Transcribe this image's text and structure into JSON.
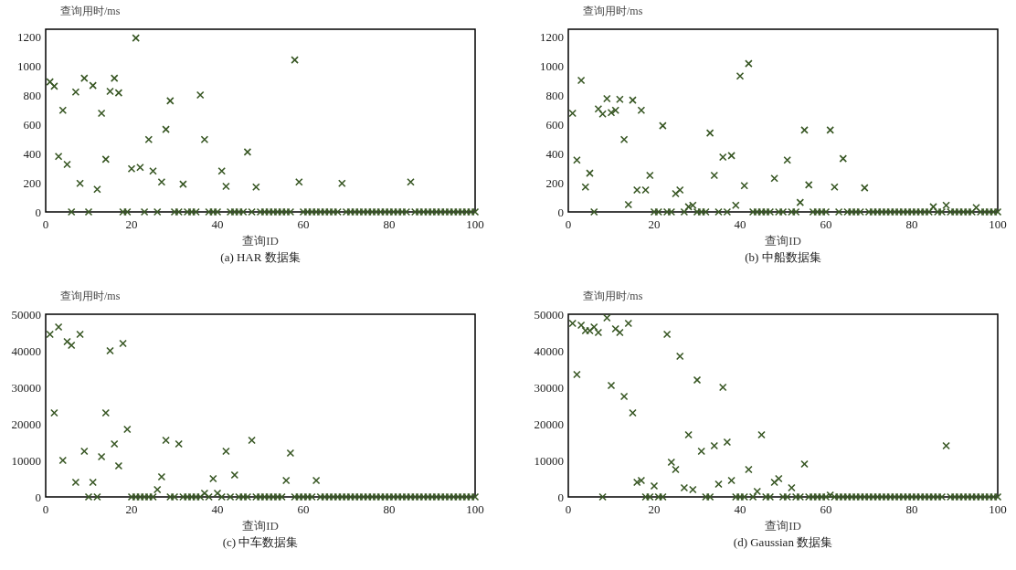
{
  "chart_data": [
    {
      "type": "scatter",
      "title": "(a) HAR 数据集",
      "xlabel": "查询ID",
      "ylabel": "查询用时/ms",
      "marker": "cross",
      "xlim": [
        0,
        100
      ],
      "xticks": [
        0,
        20,
        40,
        60,
        80,
        100
      ],
      "ylim": [
        0,
        1250
      ],
      "yticks": [
        0,
        200,
        400,
        600,
        800,
        1000,
        1200
      ],
      "x": [
        1,
        2,
        3,
        4,
        5,
        6,
        7,
        8,
        9,
        10,
        11,
        12,
        13,
        14,
        15,
        16,
        17,
        18,
        19,
        20,
        21,
        22,
        23,
        24,
        25,
        26,
        27,
        28,
        29,
        30,
        31,
        32,
        33,
        34,
        35,
        36,
        37,
        38,
        39,
        40,
        41,
        42,
        43,
        44,
        45,
        46,
        47,
        48,
        49,
        50,
        51,
        52,
        53,
        54,
        55,
        56,
        57,
        58,
        59,
        60,
        61,
        62,
        63,
        64,
        65,
        66,
        67,
        68,
        69,
        70,
        71,
        72,
        73,
        74,
        75,
        76,
        77,
        78,
        79,
        80,
        81,
        82,
        83,
        84,
        85,
        86,
        87,
        88,
        89,
        90,
        91,
        92,
        93,
        94,
        95,
        96,
        97,
        98,
        99,
        100
      ],
      "series": [
        {
          "color": "#375623",
          "values": [
            890,
            860,
            380,
            695,
            325,
            0,
            820,
            195,
            915,
            0,
            865,
            155,
            675,
            360,
            825,
            915,
            815,
            0,
            0,
            295,
            1190,
            305,
            0,
            495,
            280,
            0,
            205,
            565,
            760,
            0,
            0,
            190,
            0,
            0,
            0,
            800,
            495,
            0,
            0,
            0,
            280,
            175,
            0,
            0,
            0,
            0,
            410,
            0,
            170,
            0,
            0,
            0,
            0,
            0,
            0,
            0,
            0,
            1040,
            205,
            0,
            0,
            0,
            0,
            0,
            0,
            0,
            0,
            0,
            195,
            0,
            0,
            0,
            0,
            0,
            0,
            0,
            0,
            0,
            0,
            0,
            0,
            0,
            0,
            0,
            205,
            0,
            0,
            0,
            0,
            0,
            0,
            0,
            0,
            0,
            0,
            0,
            0,
            0,
            0,
            0
          ]
        }
      ]
    },
    {
      "type": "scatter",
      "title": "(b)  中船数据集",
      "xlabel": "查询ID",
      "ylabel": "查询用时/ms",
      "marker": "cross",
      "xlim": [
        0,
        100
      ],
      "xticks": [
        0,
        20,
        40,
        60,
        80,
        100
      ],
      "ylim": [
        0,
        1250
      ],
      "yticks": [
        0,
        200,
        400,
        600,
        800,
        1000,
        1200
      ],
      "x": [
        1,
        2,
        3,
        4,
        5,
        6,
        7,
        8,
        9,
        10,
        11,
        12,
        13,
        14,
        15,
        16,
        17,
        18,
        19,
        20,
        21,
        22,
        23,
        24,
        25,
        26,
        27,
        28,
        29,
        30,
        31,
        32,
        33,
        34,
        35,
        36,
        37,
        38,
        39,
        40,
        41,
        42,
        43,
        44,
        45,
        46,
        47,
        48,
        49,
        50,
        51,
        52,
        53,
        54,
        55,
        56,
        57,
        58,
        59,
        60,
        61,
        62,
        63,
        64,
        65,
        66,
        67,
        68,
        69,
        70,
        71,
        72,
        73,
        74,
        75,
        76,
        77,
        78,
        79,
        80,
        81,
        82,
        83,
        84,
        85,
        86,
        87,
        88,
        89,
        90,
        91,
        92,
        93,
        94,
        95,
        96,
        97,
        98,
        99,
        100
      ],
      "series": [
        {
          "color": "#375623",
          "values": [
            675,
            355,
            900,
            170,
            265,
            0,
            705,
            670,
            775,
            680,
            695,
            770,
            495,
            50,
            765,
            150,
            695,
            150,
            250,
            0,
            0,
            590,
            0,
            0,
            125,
            150,
            0,
            35,
            45,
            0,
            0,
            0,
            540,
            250,
            0,
            375,
            0,
            385,
            45,
            930,
            180,
            1015,
            0,
            0,
            0,
            0,
            0,
            230,
            0,
            0,
            355,
            0,
            0,
            65,
            560,
            185,
            0,
            0,
            0,
            0,
            560,
            170,
            0,
            365,
            0,
            0,
            0,
            0,
            165,
            0,
            0,
            0,
            0,
            0,
            0,
            0,
            0,
            0,
            0,
            0,
            0,
            0,
            0,
            0,
            35,
            0,
            0,
            45,
            0,
            0,
            0,
            0,
            0,
            0,
            30,
            0,
            0,
            0,
            0,
            0
          ]
        }
      ]
    },
    {
      "type": "scatter",
      "title": "(c)  中车数据集",
      "xlabel": "查询ID",
      "ylabel": "查询用时/ms",
      "marker": "cross",
      "xlim": [
        0,
        100
      ],
      "xticks": [
        0,
        20,
        40,
        60,
        80,
        100
      ],
      "ylim": [
        0,
        50000
      ],
      "yticks": [
        0,
        10000,
        20000,
        30000,
        40000,
        50000
      ],
      "x": [
        1,
        2,
        3,
        4,
        5,
        6,
        7,
        8,
        9,
        10,
        11,
        12,
        13,
        14,
        15,
        16,
        17,
        18,
        19,
        20,
        21,
        22,
        23,
        24,
        25,
        26,
        27,
        28,
        29,
        30,
        31,
        32,
        33,
        34,
        35,
        36,
        37,
        38,
        39,
        40,
        41,
        42,
        43,
        44,
        45,
        46,
        47,
        48,
        49,
        50,
        51,
        52,
        53,
        54,
        55,
        56,
        57,
        58,
        59,
        60,
        61,
        62,
        63,
        64,
        65,
        66,
        67,
        68,
        69,
        70,
        71,
        72,
        73,
        74,
        75,
        76,
        77,
        78,
        79,
        80,
        81,
        82,
        83,
        84,
        85,
        86,
        87,
        88,
        89,
        90,
        91,
        92,
        93,
        94,
        95,
        96,
        97,
        98,
        99,
        100
      ],
      "series": [
        {
          "color": "#375623",
          "values": [
            44500,
            23000,
            46500,
            10000,
            42500,
            41500,
            4000,
            44500,
            12500,
            0,
            4000,
            0,
            11000,
            23000,
            40000,
            14500,
            8500,
            42000,
            18500,
            0,
            0,
            0,
            0,
            0,
            0,
            2000,
            5500,
            15500,
            0,
            0,
            14500,
            0,
            0,
            0,
            0,
            0,
            1000,
            0,
            5000,
            1000,
            0,
            12500,
            0,
            6000,
            0,
            0,
            0,
            15500,
            0,
            0,
            0,
            0,
            0,
            0,
            0,
            4500,
            12000,
            0,
            0,
            0,
            0,
            0,
            4500,
            0,
            0,
            0,
            0,
            0,
            0,
            0,
            0,
            0,
            0,
            0,
            0,
            0,
            0,
            0,
            0,
            0,
            0,
            0,
            0,
            0,
            0,
            0,
            0,
            0,
            0,
            0,
            0,
            0,
            0,
            0,
            0,
            0,
            0,
            0,
            0,
            0
          ]
        }
      ]
    },
    {
      "type": "scatter",
      "title": "(d) Gaussian 数据集",
      "xlabel": "查询ID",
      "ylabel": "查询用时/ms",
      "marker": "cross",
      "xlim": [
        0,
        100
      ],
      "xticks": [
        0,
        20,
        40,
        60,
        80,
        100
      ],
      "ylim": [
        0,
        50000
      ],
      "yticks": [
        0,
        10000,
        20000,
        30000,
        40000,
        50000
      ],
      "x": [
        1,
        2,
        3,
        4,
        5,
        6,
        7,
        8,
        9,
        10,
        11,
        12,
        13,
        14,
        15,
        16,
        17,
        18,
        19,
        20,
        21,
        22,
        23,
        24,
        25,
        26,
        27,
        28,
        29,
        30,
        31,
        32,
        33,
        34,
        35,
        36,
        37,
        38,
        39,
        40,
        41,
        42,
        43,
        44,
        45,
        46,
        47,
        48,
        49,
        50,
        51,
        52,
        53,
        54,
        55,
        56,
        57,
        58,
        59,
        60,
        61,
        62,
        63,
        64,
        65,
        66,
        67,
        68,
        69,
        70,
        71,
        72,
        73,
        74,
        75,
        76,
        77,
        78,
        79,
        80,
        81,
        82,
        83,
        84,
        85,
        86,
        87,
        88,
        89,
        90,
        91,
        92,
        93,
        94,
        95,
        96,
        97,
        98,
        99,
        100
      ],
      "series": [
        {
          "color": "#375623",
          "values": [
            47500,
            33500,
            47000,
            45500,
            45500,
            46500,
            45000,
            0,
            49000,
            30500,
            46000,
            45000,
            27500,
            47500,
            23000,
            4000,
            4500,
            0,
            0,
            3000,
            0,
            0,
            44500,
            9500,
            7500,
            38500,
            2500,
            17000,
            2000,
            32000,
            12500,
            0,
            0,
            14000,
            3500,
            30000,
            15000,
            4500,
            0,
            0,
            0,
            7500,
            0,
            1500,
            17000,
            0,
            0,
            4000,
            5000,
            0,
            0,
            2500,
            0,
            0,
            9000,
            0,
            0,
            0,
            0,
            0,
            500,
            0,
            0,
            0,
            0,
            0,
            0,
            0,
            0,
            0,
            0,
            0,
            0,
            0,
            0,
            0,
            0,
            0,
            0,
            0,
            0,
            0,
            0,
            0,
            0,
            0,
            0,
            14000,
            0,
            0,
            0,
            0,
            0,
            0,
            0,
            0,
            0,
            0,
            0,
            0
          ]
        }
      ]
    }
  ]
}
